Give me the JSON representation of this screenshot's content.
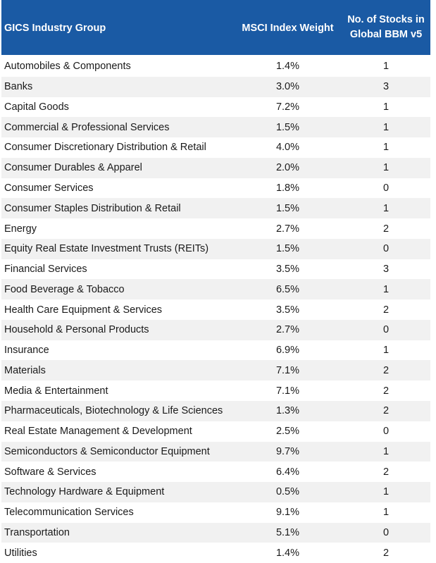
{
  "table": {
    "headers": {
      "group": "GICS Industry Group",
      "weight": "MSCI Index Weight",
      "count_line1": "No. of Stocks in",
      "count_line2": "Global BBM v5"
    },
    "rows": [
      {
        "group": "Automobiles & Components",
        "weight": "1.4%",
        "count": "1"
      },
      {
        "group": "Banks",
        "weight": "3.0%",
        "count": "3"
      },
      {
        "group": "Capital Goods",
        "weight": "7.2%",
        "count": "1"
      },
      {
        "group": "Commercial & Professional Services",
        "weight": "1.5%",
        "count": "1"
      },
      {
        "group": "Consumer Discretionary Distribution & Retail",
        "weight": "4.0%",
        "count": "1"
      },
      {
        "group": "Consumer Durables & Apparel",
        "weight": "2.0%",
        "count": "1"
      },
      {
        "group": "Consumer Services",
        "weight": "1.8%",
        "count": "0"
      },
      {
        "group": "Consumer Staples Distribution & Retail",
        "weight": "1.5%",
        "count": "1"
      },
      {
        "group": "Energy",
        "weight": "2.7%",
        "count": "2"
      },
      {
        "group": "Equity Real Estate Investment Trusts (REITs)",
        "weight": "1.5%",
        "count": "0"
      },
      {
        "group": "Financial Services",
        "weight": "3.5%",
        "count": "3"
      },
      {
        "group": "Food Beverage & Tobacco",
        "weight": "6.5%",
        "count": "1"
      },
      {
        "group": "Health Care Equipment & Services",
        "weight": "3.5%",
        "count": "2"
      },
      {
        "group": "Household & Personal Products",
        "weight": "2.7%",
        "count": "0"
      },
      {
        "group": "Insurance",
        "weight": "6.9%",
        "count": "1"
      },
      {
        "group": "Materials",
        "weight": "7.1%",
        "count": "2"
      },
      {
        "group": "Media & Entertainment",
        "weight": "7.1%",
        "count": "2"
      },
      {
        "group": "Pharmaceuticals, Biotechnology & Life Sciences",
        "weight": "1.3%",
        "count": "2"
      },
      {
        "group": "Real Estate Management & Development",
        "weight": "2.5%",
        "count": "0"
      },
      {
        "group": "Semiconductors & Semiconductor Equipment",
        "weight": "9.7%",
        "count": "1"
      },
      {
        "group": "Software & Services",
        "weight": "6.4%",
        "count": "2"
      },
      {
        "group": "Technology Hardware & Equipment",
        "weight": "0.5%",
        "count": "1"
      },
      {
        "group": "Telecommunication Services",
        "weight": "9.1%",
        "count": "1"
      },
      {
        "group": "Transportation",
        "weight": "5.1%",
        "count": "0"
      },
      {
        "group": "Utilities",
        "weight": "1.4%",
        "count": "2"
      }
    ]
  },
  "colors": {
    "header_bg": "#1a5aa4",
    "stripe_bg": "#f1f1f1"
  }
}
